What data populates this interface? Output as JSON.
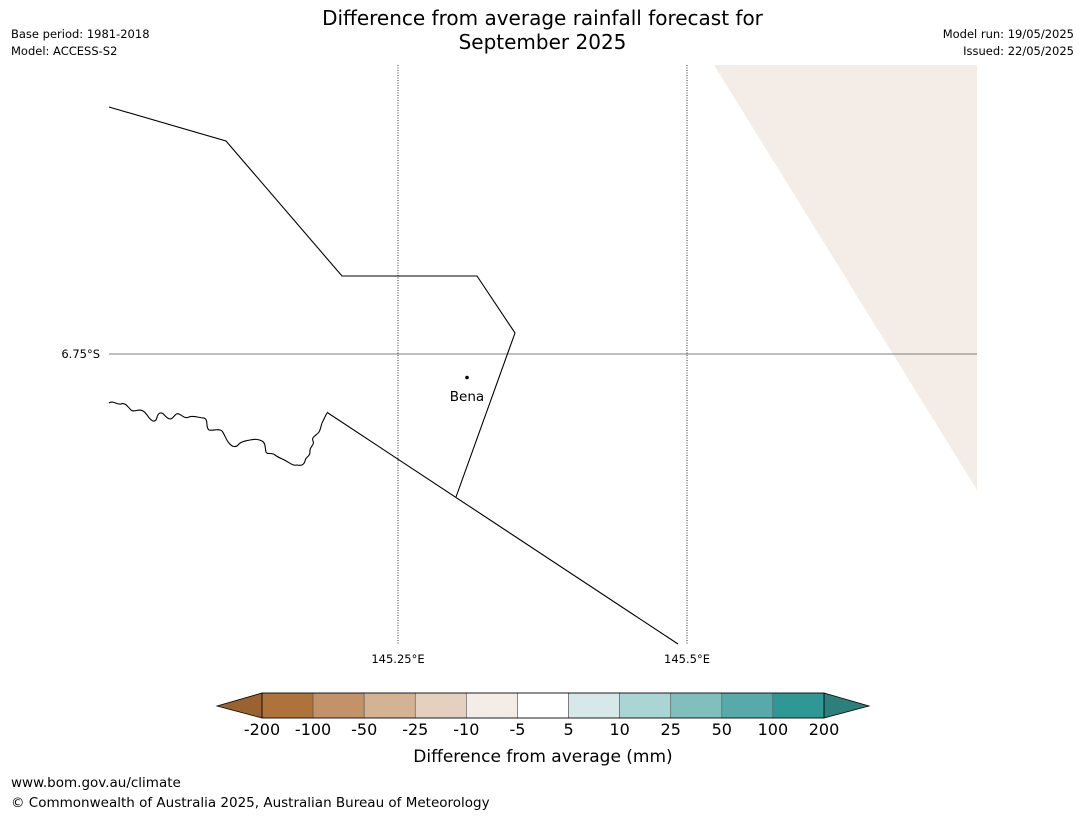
{
  "header": {
    "title_line1": "Difference from average rainfall forecast for",
    "title_line2": "September 2025",
    "base_period": "Base period: 1981-2018",
    "model": "Model: ACCESS-S2",
    "model_run": "Model run: 19/05/2025",
    "issued": "Issued: 22/05/2025"
  },
  "map": {
    "lat_label": "6.75°S",
    "lon_labels": [
      "145.25°E",
      "145.5°E"
    ],
    "place": {
      "name": "Bena"
    },
    "fill_color": "#f4ede7"
  },
  "colorbar": {
    "label": "Difference from average (mm)",
    "ticks": [
      "-200",
      "-100",
      "-50",
      "-25",
      "-10",
      "-5",
      "5",
      "10",
      "25",
      "50",
      "100",
      "200"
    ],
    "low_extend_color": "#9a6230",
    "high_extend_color": "#2d7f7b",
    "colors": [
      "#ad733a",
      "#c29268",
      "#d4b394",
      "#e4d0be",
      "#f4ede7",
      "#ffffff",
      "#d6e8e7",
      "#aad5d4",
      "#80bfbc",
      "#57aaa9",
      "#2f9895"
    ]
  },
  "footer": {
    "url": "www.bom.gov.au/climate",
    "copyright": "© Commonwealth of Australia 2025, Australian Bureau of Meteorology"
  }
}
